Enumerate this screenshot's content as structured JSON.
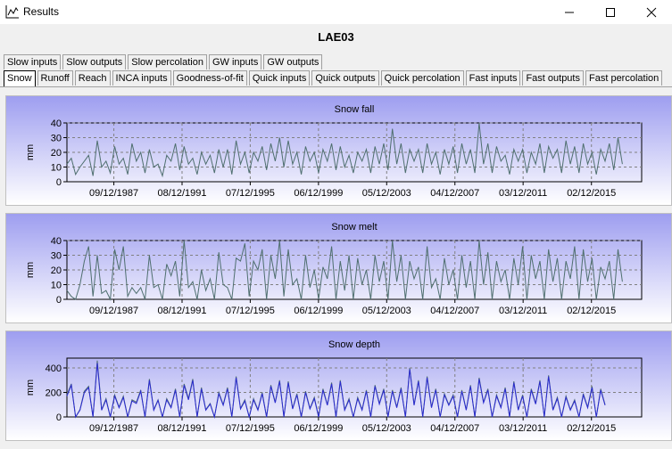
{
  "window": {
    "title": "Results"
  },
  "heading": "LAE03",
  "tabs_row1": [
    "Slow inputs",
    "Slow outputs",
    "Slow percolation",
    "GW inputs",
    "GW outputs"
  ],
  "tabs_row2": [
    "Snow",
    "Runoff",
    "Reach",
    "INCA inputs",
    "Goodness-of-fit",
    "Quick inputs",
    "Quick outputs",
    "Quick percolation",
    "Fast inputs",
    "Fast outputs",
    "Fast percolation"
  ],
  "active_tab": "Snow",
  "chart_data": [
    {
      "type": "line",
      "title": "Snow fall",
      "ylabel": "mm",
      "ylim": [
        0,
        40
      ],
      "yticks": [
        0,
        10,
        20,
        30,
        40
      ],
      "xlim": [
        "1985-01-01",
        "2017-12-31"
      ],
      "xticks": [
        "09/12/1987",
        "08/12/1991",
        "07/12/1995",
        "06/12/1999",
        "05/12/2003",
        "04/12/2007",
        "03/12/2011",
        "02/12/2015"
      ],
      "grid": true,
      "series": [
        {
          "color": "#4f6f6f",
          "x_start": "1985-01-01",
          "step_days": 91,
          "values": [
            12,
            16,
            5,
            10,
            14,
            18,
            4,
            28,
            10,
            14,
            6,
            24,
            12,
            16,
            5,
            26,
            14,
            20,
            6,
            22,
            10,
            12,
            4,
            18,
            14,
            26,
            8,
            24,
            12,
            16,
            5,
            20,
            12,
            18,
            6,
            22,
            10,
            22,
            5,
            28,
            12,
            20,
            6,
            20,
            14,
            24,
            8,
            26,
            14,
            30,
            10,
            28,
            12,
            20,
            5,
            24,
            14,
            20,
            6,
            22,
            14,
            26,
            8,
            24,
            10,
            18,
            6,
            20,
            14,
            22,
            6,
            24,
            12,
            26,
            8,
            36,
            12,
            26,
            6,
            22,
            14,
            22,
            6,
            26,
            12,
            20,
            5,
            22,
            12,
            24,
            6,
            26,
            12,
            22,
            6,
            40,
            12,
            26,
            6,
            24,
            14,
            18,
            5,
            22,
            14,
            22,
            6,
            20,
            12,
            26,
            6,
            24,
            16,
            22,
            6,
            28,
            12,
            24,
            6,
            26,
            12,
            20,
            5,
            22,
            14,
            26,
            8,
            30,
            12
          ]
        }
      ]
    },
    {
      "type": "line",
      "title": "Snow melt",
      "ylabel": "mm",
      "ylim": [
        0,
        40
      ],
      "yticks": [
        0,
        10,
        20,
        30,
        40
      ],
      "xlim": [
        "1985-01-01",
        "2017-12-31"
      ],
      "xticks": [
        "09/12/1987",
        "08/12/1991",
        "07/12/1995",
        "06/12/1999",
        "05/12/2003",
        "04/12/2007",
        "03/12/2011",
        "02/12/2015"
      ],
      "grid": true,
      "series": [
        {
          "color": "#4f6f6f",
          "x_start": "1985-01-01",
          "step_days": 91,
          "values": [
            6,
            2,
            0,
            10,
            26,
            36,
            2,
            30,
            4,
            6,
            0,
            34,
            20,
            36,
            2,
            8,
            4,
            8,
            0,
            30,
            8,
            10,
            0,
            24,
            16,
            26,
            2,
            40,
            8,
            12,
            0,
            20,
            6,
            14,
            0,
            32,
            10,
            8,
            0,
            28,
            26,
            38,
            2,
            26,
            20,
            34,
            0,
            30,
            14,
            40,
            2,
            34,
            10,
            14,
            0,
            30,
            8,
            20,
            0,
            22,
            14,
            36,
            0,
            26,
            6,
            30,
            0,
            28,
            10,
            20,
            0,
            30,
            12,
            26,
            0,
            40,
            12,
            30,
            0,
            26,
            14,
            22,
            0,
            36,
            8,
            14,
            0,
            28,
            10,
            20,
            0,
            30,
            8,
            26,
            0,
            40,
            10,
            32,
            0,
            26,
            12,
            20,
            0,
            28,
            10,
            36,
            0,
            30,
            14,
            26,
            0,
            34,
            12,
            28,
            0,
            26,
            14,
            36,
            0,
            34,
            12,
            28,
            0,
            22,
            14,
            26,
            0,
            34,
            12
          ]
        }
      ]
    },
    {
      "type": "line",
      "title": "Snow depth",
      "ylabel": "mm",
      "ylim": [
        0,
        480
      ],
      "yticks": [
        0,
        200,
        400
      ],
      "xlim": [
        "1985-01-01",
        "2017-12-31"
      ],
      "xticks": [
        "09/12/1987",
        "08/12/1991",
        "07/12/1995",
        "06/12/1999",
        "05/12/2003",
        "04/12/2007",
        "03/12/2011",
        "02/12/2015"
      ],
      "grid": true,
      "series": [
        {
          "name": "",
          "color": "#4f6f6f",
          "x_start": "1985-01-01",
          "step_days": 91,
          "values": [
            180,
            270,
            0,
            60,
            210,
            250,
            0,
            460,
            60,
            150,
            0,
            180,
            80,
            170,
            0,
            140,
            120,
            220,
            0,
            310,
            60,
            140,
            0,
            150,
            80,
            230,
            0,
            270,
            150,
            310,
            0,
            240,
            60,
            110,
            0,
            200,
            100,
            240,
            0,
            330,
            70,
            140,
            0,
            150,
            60,
            200,
            0,
            260,
            120,
            300,
            0,
            290,
            70,
            190,
            0,
            210,
            70,
            160,
            0,
            230,
            100,
            280,
            0,
            300,
            60,
            150,
            0,
            160,
            60,
            220,
            0,
            260,
            110,
            230,
            0,
            220,
            80,
            240,
            0,
            400,
            100,
            300,
            0,
            330,
            80,
            230,
            0,
            190,
            100,
            180,
            0,
            220,
            60,
            260,
            0,
            320,
            120,
            230,
            0,
            180,
            80,
            240,
            0,
            290,
            60,
            180,
            0,
            230,
            110,
            300,
            0,
            340,
            60,
            160,
            0,
            170,
            60,
            140,
            0,
            190,
            80,
            250,
            0,
            230,
            100
          ]
        },
        {
          "name": "",
          "color": "#2a2ad0",
          "x_start": "1985-01-01",
          "step_days": 91,
          "values": [
            170,
            260,
            0,
            55,
            200,
            240,
            0,
            440,
            55,
            140,
            0,
            170,
            75,
            160,
            0,
            130,
            110,
            210,
            0,
            300,
            55,
            135,
            0,
            140,
            75,
            220,
            0,
            260,
            140,
            300,
            0,
            230,
            55,
            105,
            0,
            190,
            95,
            230,
            0,
            320,
            65,
            130,
            0,
            140,
            55,
            190,
            0,
            250,
            115,
            290,
            0,
            280,
            65,
            180,
            0,
            200,
            65,
            150,
            0,
            220,
            95,
            270,
            0,
            290,
            55,
            140,
            0,
            150,
            55,
            210,
            0,
            250,
            105,
            220,
            0,
            210,
            75,
            230,
            0,
            390,
            95,
            290,
            0,
            320,
            75,
            220,
            0,
            180,
            95,
            170,
            0,
            210,
            55,
            250,
            0,
            310,
            115,
            220,
            0,
            170,
            75,
            230,
            0,
            280,
            55,
            170,
            0,
            220,
            105,
            290,
            0,
            330,
            55,
            150,
            0,
            160,
            55,
            130,
            0,
            180,
            75,
            240,
            0,
            220,
            95
          ]
        }
      ]
    }
  ]
}
